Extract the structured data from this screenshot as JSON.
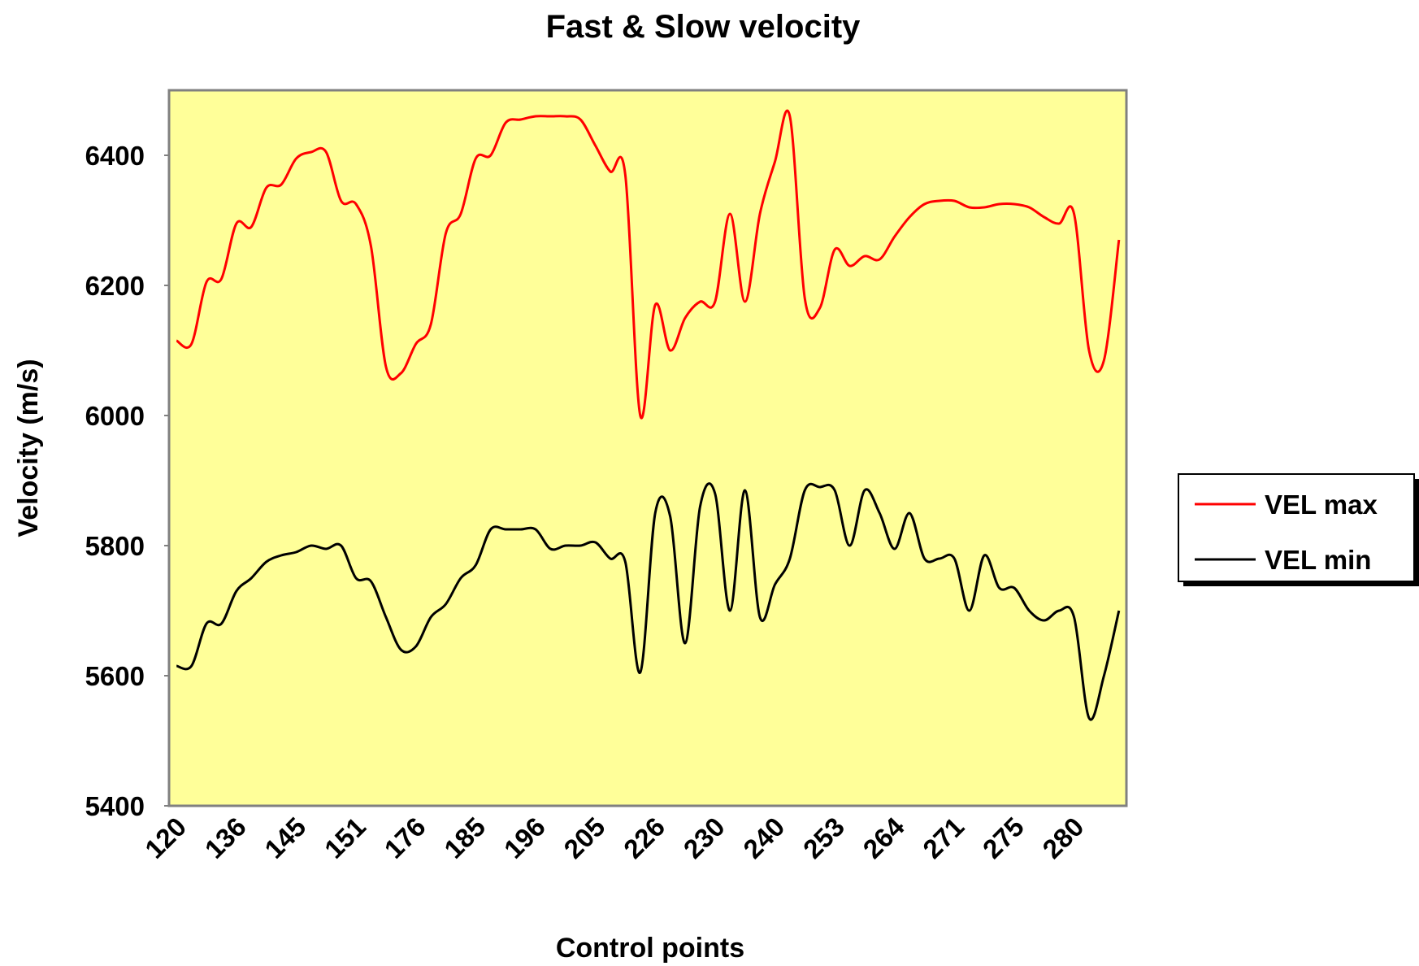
{
  "chart_data": {
    "type": "line",
    "title": "Fast & Slow velocity",
    "x_label": "Control points",
    "y_label": "Velocity (m/s)",
    "categories": [
      "120",
      null,
      null,
      null,
      "136",
      null,
      null,
      null,
      "145",
      null,
      null,
      null,
      "151",
      null,
      null,
      null,
      "176",
      null,
      null,
      null,
      "185",
      null,
      null,
      null,
      "196",
      null,
      null,
      null,
      "205",
      null,
      null,
      null,
      "226",
      null,
      null,
      null,
      "230",
      null,
      null,
      null,
      "240",
      null,
      null,
      null,
      "253",
      null,
      null,
      null,
      "264",
      null,
      null,
      null,
      "271",
      null,
      null,
      null,
      "275",
      null,
      null,
      null,
      "280",
      null,
      null,
      null
    ],
    "series": [
      {
        "name": "VEL max",
        "color": "#ff0000",
        "values": [
          6115,
          6110,
          6205,
          6210,
          6295,
          6290,
          6350,
          6355,
          6395,
          6405,
          6405,
          6330,
          6325,
          6260,
          6075,
          6065,
          6110,
          6140,
          6280,
          6310,
          6395,
          6400,
          6450,
          6455,
          6460,
          6460,
          6460,
          6455,
          6415,
          6375,
          6370,
          6000,
          6170,
          6100,
          6150,
          6175,
          6175,
          6310,
          6175,
          6310,
          6390,
          6460,
          6180,
          6165,
          6255,
          6230,
          6245,
          6240,
          6275,
          6305,
          6325,
          6330,
          6330,
          6320,
          6320,
          6325,
          6325,
          6320,
          6305,
          6295,
          6310,
          6100,
          6085,
          6270
        ]
      },
      {
        "name": "VEL min",
        "color": "#000000",
        "values": [
          5615,
          5615,
          5680,
          5680,
          5730,
          5750,
          5775,
          5785,
          5790,
          5800,
          5795,
          5800,
          5750,
          5745,
          5690,
          5640,
          5645,
          5690,
          5710,
          5750,
          5770,
          5825,
          5825,
          5825,
          5825,
          5795,
          5800,
          5800,
          5805,
          5780,
          5775,
          5605,
          5850,
          5845,
          5650,
          5860,
          5880,
          5700,
          5885,
          5690,
          5740,
          5780,
          5885,
          5890,
          5885,
          5800,
          5885,
          5850,
          5795,
          5850,
          5780,
          5780,
          5780,
          5700,
          5785,
          5735,
          5735,
          5700,
          5685,
          5700,
          5690,
          5535,
          5600,
          5700
        ]
      }
    ],
    "ylim": [
      5400,
      6500
    ],
    "yticks": [
      5400,
      5600,
      5800,
      6000,
      6200,
      6400
    ],
    "plot_background": "#ffff99",
    "legend": "right"
  }
}
